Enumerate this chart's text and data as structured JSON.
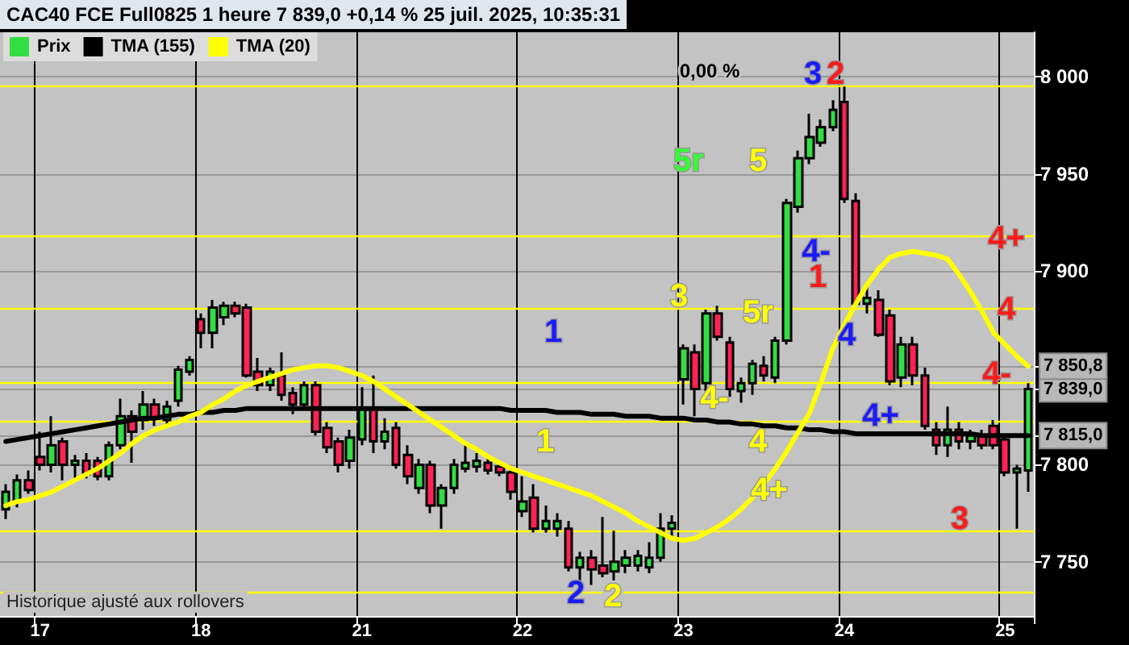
{
  "chart_data": {
    "type": "candlestick",
    "title": "CAC40 FCE Full0825 1 heure 7 839,0 +0,14 % 25 juil. 2025, 10:35:31",
    "categories": [
      null,
      null,
      null,
      "17",
      null,
      null,
      null,
      null,
      null,
      null,
      null,
      null,
      null,
      null,
      null,
      null,
      null,
      "18",
      null,
      null,
      null,
      null,
      null,
      null,
      null,
      null,
      null,
      null,
      null,
      null,
      null,
      "21",
      null,
      null,
      null,
      null,
      null,
      null,
      null,
      null,
      null,
      null,
      null,
      null,
      null,
      "22",
      null,
      null,
      null,
      null,
      null,
      null,
      null,
      null,
      null,
      null,
      null,
      null,
      null,
      "23",
      null,
      null,
      null,
      null,
      null,
      null,
      null,
      null,
      null,
      null,
      null,
      null,
      null,
      "24",
      null,
      null,
      null,
      null,
      null,
      null,
      null,
      null,
      null,
      null,
      null,
      null,
      null,
      "25",
      null,
      null
    ],
    "series": [
      {
        "name": "Prix",
        "color": "#33dd44",
        "ohlc": [
          [
            7777,
            7790,
            7772,
            7786
          ],
          [
            7781,
            7795,
            7778,
            7792
          ],
          [
            7792,
            7797,
            7785,
            7787
          ],
          [
            7804,
            7817,
            7797,
            7800
          ],
          [
            7800,
            7825,
            7796,
            7810
          ],
          [
            7812,
            7814,
            7792,
            7800
          ],
          [
            7800,
            7805,
            7792,
            7802
          ],
          [
            7802,
            7806,
            7793,
            7795
          ],
          [
            7802,
            7804,
            7792,
            7794
          ],
          [
            7794,
            7812,
            7792,
            7810
          ],
          [
            7810,
            7834,
            7808,
            7825
          ],
          [
            7825,
            7828,
            7801,
            7817
          ],
          [
            7823,
            7838,
            7818,
            7831
          ],
          [
            7831,
            7834,
            7820,
            7824
          ],
          [
            7823,
            7833,
            7820,
            7830
          ],
          [
            7833,
            7851,
            7830,
            7849
          ],
          [
            7848,
            7856,
            7846,
            7854
          ],
          [
            7875,
            7878,
            7860,
            7868
          ],
          [
            7868,
            7885,
            7860,
            7881
          ],
          [
            7876,
            7884,
            7872,
            7882
          ],
          [
            7882,
            7884,
            7876,
            7878
          ],
          [
            7881,
            7883,
            7845,
            7846
          ],
          [
            7848,
            7855,
            7838,
            7841
          ],
          [
            7841,
            7850,
            7838,
            7848
          ],
          [
            7846,
            7858,
            7833,
            7836
          ],
          [
            7837,
            7840,
            7826,
            7831
          ],
          [
            7831,
            7843,
            7828,
            7841
          ],
          [
            7841,
            7843,
            7815,
            7817
          ],
          [
            7819,
            7822,
            7806,
            7809
          ],
          [
            7812,
            7814,
            7796,
            7800
          ],
          [
            7802,
            7818,
            7798,
            7814
          ],
          [
            7813,
            7840,
            7810,
            7829
          ],
          [
            7829,
            7846,
            7806,
            7812
          ],
          [
            7812,
            7824,
            7808,
            7817
          ],
          [
            7819,
            7822,
            7798,
            7800
          ],
          [
            7805,
            7810,
            7790,
            7794
          ],
          [
            7788,
            7803,
            7785,
            7800
          ],
          [
            7800,
            7802,
            7775,
            7779
          ],
          [
            7779,
            7790,
            7767,
            7788
          ],
          [
            7788,
            7803,
            7785,
            7800
          ],
          [
            7798,
            7810,
            7796,
            7801
          ],
          [
            7799,
            7806,
            7796,
            7802
          ],
          [
            7801,
            7805,
            7795,
            7797
          ],
          [
            7799,
            7801,
            7794,
            7796
          ],
          [
            7796,
            7799,
            7782,
            7786
          ],
          [
            7776,
            7794,
            7773,
            7781
          ],
          [
            7783,
            7790,
            7765,
            7767
          ],
          [
            7767,
            7779,
            7765,
            7771
          ],
          [
            7767,
            7775,
            7763,
            7771
          ],
          [
            7767,
            7771,
            7745,
            7747
          ],
          [
            7747,
            7755,
            7740,
            7752
          ],
          [
            7752,
            7756,
            7738,
            7746
          ],
          [
            7748,
            7773,
            7742,
            7744
          ],
          [
            7745,
            7766,
            7740,
            7750
          ],
          [
            7748,
            7756,
            7744,
            7752
          ],
          [
            7748,
            7756,
            7745,
            7753
          ],
          [
            7747,
            7760,
            7744,
            7752
          ],
          [
            7752,
            7775,
            7750,
            7767
          ],
          [
            7767,
            7774,
            7762,
            7770
          ],
          [
            7844,
            7862,
            7831,
            7860
          ],
          [
            7858,
            7862,
            7825,
            7839
          ],
          [
            7842,
            7880,
            7838,
            7878
          ],
          [
            7878,
            7882,
            7864,
            7866
          ],
          [
            7863,
            7866,
            7835,
            7839
          ],
          [
            7838,
            7845,
            7832,
            7842
          ],
          [
            7842,
            7854,
            7836,
            7852
          ],
          [
            7851,
            7856,
            7843,
            7846
          ],
          [
            7845,
            7866,
            7842,
            7864
          ],
          [
            7864,
            7937,
            7862,
            7935
          ],
          [
            7933,
            7962,
            7930,
            7958
          ],
          [
            7958,
            7981,
            7955,
            7969
          ],
          [
            7966,
            7978,
            7964,
            7974
          ],
          [
            7974,
            7988,
            7972,
            7983
          ],
          [
            7987,
            7995,
            7935,
            7937
          ],
          [
            7936,
            7940,
            7882,
            7883
          ],
          [
            7883,
            7892,
            7878,
            7886
          ],
          [
            7885,
            7890,
            7866,
            7867
          ],
          [
            7877,
            7880,
            7841,
            7843
          ],
          [
            7845,
            7866,
            7840,
            7862
          ],
          [
            7862,
            7866,
            7841,
            7846
          ],
          [
            7846,
            7850,
            7818,
            7820
          ],
          [
            7818,
            7822,
            7805,
            7810
          ],
          [
            7810,
            7830,
            7804,
            7818
          ],
          [
            7818,
            7822,
            7808,
            7812
          ],
          [
            7812,
            7818,
            7808,
            7815
          ],
          [
            7815,
            7818,
            7808,
            7810
          ],
          [
            7820,
            7823,
            7808,
            7810
          ],
          [
            7813,
            7815,
            7794,
            7796
          ],
          [
            7796,
            7800,
            7767,
            7798
          ],
          [
            7797,
            7842,
            7786,
            7839
          ]
        ],
        "colors": [
          "#33dd44",
          "#33dd44",
          "#ff2255",
          "#ff2255",
          "#33dd44",
          "#ff2255",
          "#33dd44",
          "#ff2255",
          "#ff2255",
          "#33dd44",
          "#33dd44",
          "#ff2255",
          "#33dd44",
          "#ff2255",
          "#33dd44",
          "#33dd44",
          "#33dd44",
          "#ff2255",
          "#33dd44",
          "#33dd44",
          "#ff2255",
          "#ff2255",
          "#ff2255",
          "#33dd44",
          "#ff2255",
          "#ff2255",
          "#33dd44",
          "#ff2255",
          "#ff2255",
          "#ff2255",
          "#33dd44",
          "#33dd44",
          "#ff2255",
          "#33dd44",
          "#ff2255",
          "#ff2255",
          "#33dd44",
          "#ff2255",
          "#33dd44",
          "#33dd44",
          "#33dd44",
          "#33dd44",
          "#ff2255",
          "#ff2255",
          "#ff2255",
          "#33dd44",
          "#ff2255",
          "#33dd44",
          "#33dd44",
          "#ff2255",
          "#33dd44",
          "#ff2255",
          "#ff2255",
          "#33dd44",
          "#33dd44",
          "#33dd44",
          "#33dd44",
          "#33dd44",
          "#33dd44",
          "#33dd44",
          "#ff2255",
          "#33dd44",
          "#ff2255",
          "#ff2255",
          "#33dd44",
          "#33dd44",
          "#ff2255",
          "#33dd44",
          "#33dd44",
          "#33dd44",
          "#33dd44",
          "#33dd44",
          "#33dd44",
          "#ff2255",
          "#ff2255",
          "#33dd44",
          "#ff2255",
          "#ff2255",
          "#33dd44",
          "#ff2255",
          "#ff2255",
          "#ff2255",
          "#33dd44",
          "#ff2255",
          "#33dd44",
          "#ff2255",
          "#ff2255",
          "#ff2255",
          "#33dd44",
          "#33dd44"
        ]
      },
      {
        "name": "TMA (155)",
        "type": "line",
        "color": "#000000",
        "values": [
          7812,
          7813,
          7814,
          7815,
          7816,
          7817,
          7818,
          7819,
          7820,
          7821,
          7822,
          7823,
          7824,
          7824,
          7825,
          7826,
          7826,
          7827,
          7827,
          7828,
          7828,
          7829,
          7829,
          7829,
          7829,
          7829,
          7829,
          7829,
          7829,
          7829,
          7829,
          7829,
          7829,
          7829,
          7829,
          7829,
          7829,
          7829,
          7829,
          7829,
          7829,
          7829,
          7829,
          7829,
          7828,
          7828,
          7828,
          7828,
          7827,
          7827,
          7827,
          7826,
          7826,
          7826,
          7825,
          7825,
          7825,
          7824,
          7824,
          7824,
          7823,
          7823,
          7822,
          7822,
          7821,
          7821,
          7820,
          7820,
          7819,
          7819,
          7818,
          7818,
          7817,
          7817,
          7816,
          7816,
          7816,
          7816,
          7816,
          7816,
          7816,
          7816,
          7816,
          7816,
          7816,
          7815,
          7815,
          7815,
          7815,
          7815
        ]
      },
      {
        "name": "TMA (20)",
        "type": "line",
        "color": "#ffff00",
        "values": [
          7779,
          7781,
          7782,
          7784,
          7786,
          7789,
          7792,
          7795,
          7798,
          7802,
          7806,
          7811,
          7815,
          7818,
          7820,
          7822,
          7825,
          7827,
          7831,
          7834,
          7838,
          7841,
          7843,
          7845,
          7847,
          7849,
          7850,
          7851,
          7851,
          7850,
          7848,
          7846,
          7843,
          7839,
          7835,
          7831,
          7827,
          7823,
          7819,
          7815,
          7811,
          7808,
          7804,
          7801,
          7798,
          7796,
          7794,
          7792,
          7790,
          7788,
          7786,
          7784,
          7781,
          7778,
          7775,
          7771,
          7768,
          7765,
          7762,
          7761,
          7762,
          7765,
          7768,
          7772,
          7777,
          7783,
          7790,
          7798,
          7807,
          7817,
          7827,
          7843,
          7860,
          7872,
          7883,
          7893,
          7901,
          7907,
          7909,
          7910,
          7909,
          7908,
          7906,
          7898,
          7889,
          7879,
          7868,
          7862,
          7856,
          7850.8
        ]
      }
    ],
    "ylim": [
      7722,
      8023
    ],
    "yticks": [
      {
        "value": 7750,
        "label": "7 750"
      },
      {
        "value": 7800,
        "label": "7 800"
      },
      {
        "value": 7815,
        "label": "7 815,0"
      },
      {
        "value": 7839,
        "label": "7 839,0"
      },
      {
        "value": 7850.8,
        "label": "7 850,8"
      },
      {
        "value": 7900,
        "label": "7 900"
      },
      {
        "value": 7950,
        "label": "7 950"
      },
      {
        "value": 8000,
        "label": "8 000"
      }
    ],
    "grid": true,
    "legend": "top left",
    "ref_lines": [
      {
        "axis": "y",
        "value": 7995,
        "color": "#ffff00"
      },
      {
        "axis": "y",
        "value": 7918,
        "color": "#ffff00"
      },
      {
        "axis": "y",
        "value": 7881,
        "color": "#ffff00"
      },
      {
        "axis": "y",
        "value": 7842,
        "color": "#ffff00"
      },
      {
        "axis": "y",
        "value": 7822,
        "color": "#ffff00"
      },
      {
        "axis": "y",
        "value": 7766,
        "color": "#ffff00"
      },
      {
        "axis": "y",
        "value": 7734,
        "color": "#ffff00"
      }
    ],
    "annotations": [
      "1",
      "1",
      "2",
      "2",
      "3",
      "4-",
      "4",
      "4+",
      "5r",
      "5",
      "5r",
      "0,00 %",
      "3",
      "2",
      "4-",
      "1",
      "4",
      "4+",
      "3",
      "4+",
      "4",
      "4-",
      "Historique ajusté aux rollovers"
    ]
  }
}
